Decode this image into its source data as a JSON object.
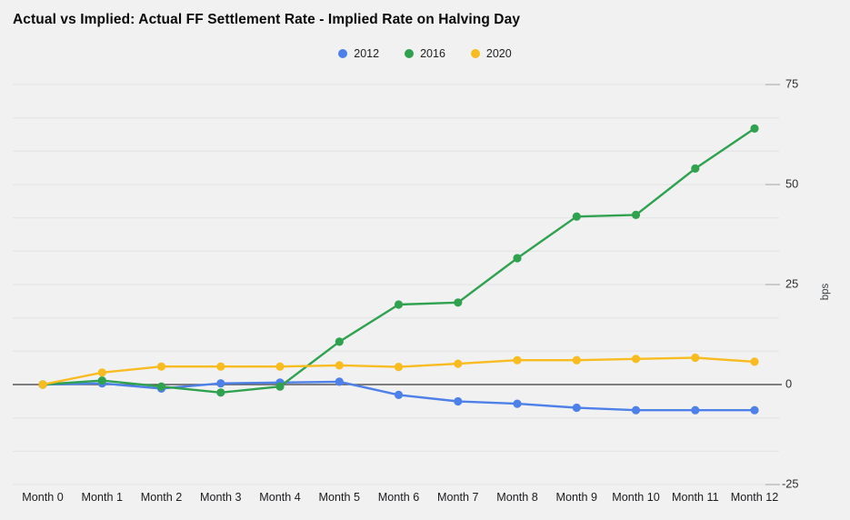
{
  "title": "Actual vs Implied: Actual FF Settlement Rate - Implied Rate on Halving Day",
  "chart_data": {
    "type": "line",
    "title": "Actual vs Implied: Actual FF Settlement Rate - Implied Rate on Halving Day",
    "categories": [
      "Month 0",
      "Month 1",
      "Month 2",
      "Month 3",
      "Month 4",
      "Month 5",
      "Month 6",
      "Month 7",
      "Month 8",
      "Month 9",
      "Month 10",
      "Month 11",
      "Month 12"
    ],
    "series": [
      {
        "name": "2012",
        "color": "#4d80e8",
        "values": [
          0,
          0.3,
          -1,
          0.3,
          0.5,
          0.7,
          -2.6,
          -4.2,
          -4.8,
          -5.8,
          -6.4,
          -6.4,
          -6.4
        ]
      },
      {
        "name": "2016",
        "color": "#30a24f",
        "values": [
          0,
          1,
          -0.5,
          -2,
          -0.5,
          10.7,
          20,
          20.5,
          31.6,
          42,
          42.4,
          54,
          64
        ]
      },
      {
        "name": "2020",
        "color": "#f8bb20",
        "values": [
          0,
          3,
          4.5,
          4.5,
          4.5,
          4.8,
          4.4,
          5.2,
          6.1,
          6.1,
          6.4,
          6.7,
          5.7
        ]
      }
    ],
    "xlabel": "",
    "ylabel": "bps",
    "ylim": [
      -25,
      75
    ],
    "yticks": [
      75,
      50,
      25,
      0,
      -25
    ],
    "minor_gridlines_between_majors": 2,
    "legend_position": "top",
    "grid": true,
    "zero_line": true
  },
  "colors": {
    "background": "#f1f1f2",
    "gridline": "#e2e2e4",
    "major_tick": "#ababae",
    "zero_line": "#58595b"
  }
}
